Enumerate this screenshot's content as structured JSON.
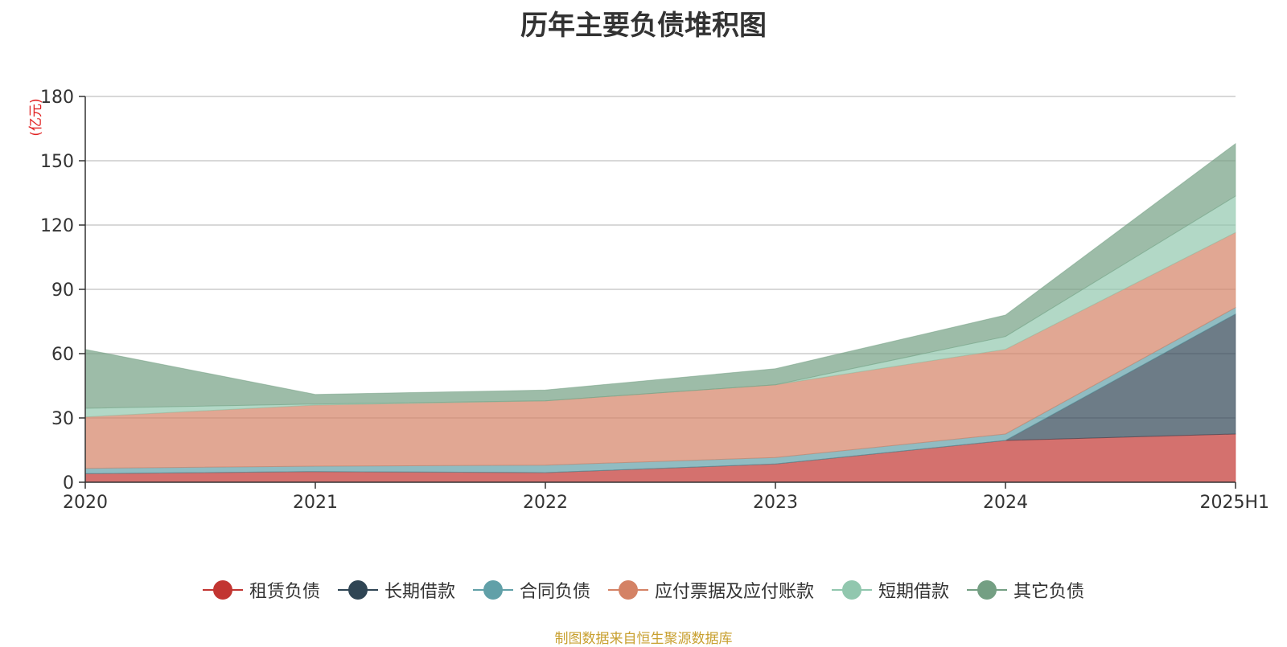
{
  "title": "历年主要负债堆积图",
  "unit_label": "(亿元)",
  "source_note": "制图数据来自恒生聚源数据库",
  "chart_data": {
    "type": "area",
    "stacked": true,
    "title": "历年主要负债堆积图",
    "ylabel": "(亿元)",
    "categories": [
      "2020",
      "2021",
      "2022",
      "2023",
      "2024",
      "2025H1"
    ],
    "ylim": [
      0,
      180
    ],
    "yticks": [
      0,
      30,
      60,
      90,
      120,
      150,
      180
    ],
    "grid": true,
    "legend_position": "bottom",
    "series": [
      {
        "name": "租赁负债",
        "color": "#c23531",
        "values": [
          4.0,
          5.0,
          4.5,
          8.5,
          19.5,
          22.5
        ]
      },
      {
        "name": "长期借款",
        "color": "#2f4554",
        "values": [
          0,
          0,
          0,
          0,
          0,
          56.0
        ]
      },
      {
        "name": "合同负债",
        "color": "#61a0a8",
        "values": [
          2.5,
          2.5,
          3.5,
          3.0,
          3.0,
          3.0
        ]
      },
      {
        "name": "应付票据及应付账款",
        "color": "#d48265",
        "values": [
          24.0,
          28.5,
          30.0,
          34.0,
          39.5,
          35.0
        ]
      },
      {
        "name": "短期借款",
        "color": "#91c7ae",
        "values": [
          4.0,
          0.5,
          0,
          0,
          6.0,
          17.0
        ]
      },
      {
        "name": "其它负债",
        "color": "#749f83",
        "values": [
          27.5,
          4.5,
          5.0,
          7.5,
          10.0,
          24.5
        ]
      }
    ]
  }
}
